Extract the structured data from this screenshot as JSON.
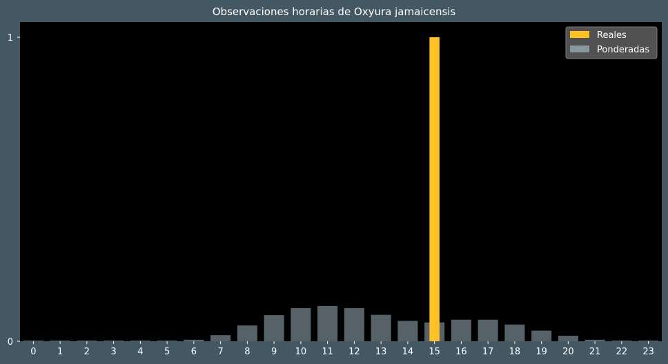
{
  "chart_data": {
    "type": "bar",
    "title": "Observaciones horarias de Oxyura jamaicensis",
    "xlabel": "",
    "ylabel": "",
    "categories": [
      "0",
      "1",
      "2",
      "3",
      "4",
      "5",
      "6",
      "7",
      "8",
      "9",
      "10",
      "11",
      "12",
      "13",
      "14",
      "15",
      "16",
      "17",
      "18",
      "19",
      "20",
      "21",
      "22",
      "23"
    ],
    "series": [
      {
        "name": "Reales",
        "color": "#ffc125",
        "values": [
          0,
          0,
          0,
          0,
          0,
          0,
          0,
          0,
          0,
          0,
          0,
          0,
          0,
          0,
          0,
          1,
          0,
          0,
          0,
          0,
          0,
          0,
          0,
          0
        ]
      },
      {
        "name": "Ponderadas",
        "color": "#90a4ae",
        "opacity": 0.6,
        "values": [
          0.002,
          0.002,
          0.002,
          0.002,
          0.002,
          0.002,
          0.005,
          0.02,
          0.052,
          0.086,
          0.109,
          0.116,
          0.109,
          0.087,
          0.067,
          0.062,
          0.071,
          0.071,
          0.055,
          0.035,
          0.018,
          0.005,
          0.002,
          0.002
        ]
      }
    ],
    "yticks": [
      "0",
      "1"
    ],
    "ylim": [
      0,
      1.05
    ],
    "grid": false,
    "legend_position": "top-right",
    "colors": {
      "page_background": "#435863",
      "plot_background": "#000000",
      "text": "#ffffff"
    }
  }
}
